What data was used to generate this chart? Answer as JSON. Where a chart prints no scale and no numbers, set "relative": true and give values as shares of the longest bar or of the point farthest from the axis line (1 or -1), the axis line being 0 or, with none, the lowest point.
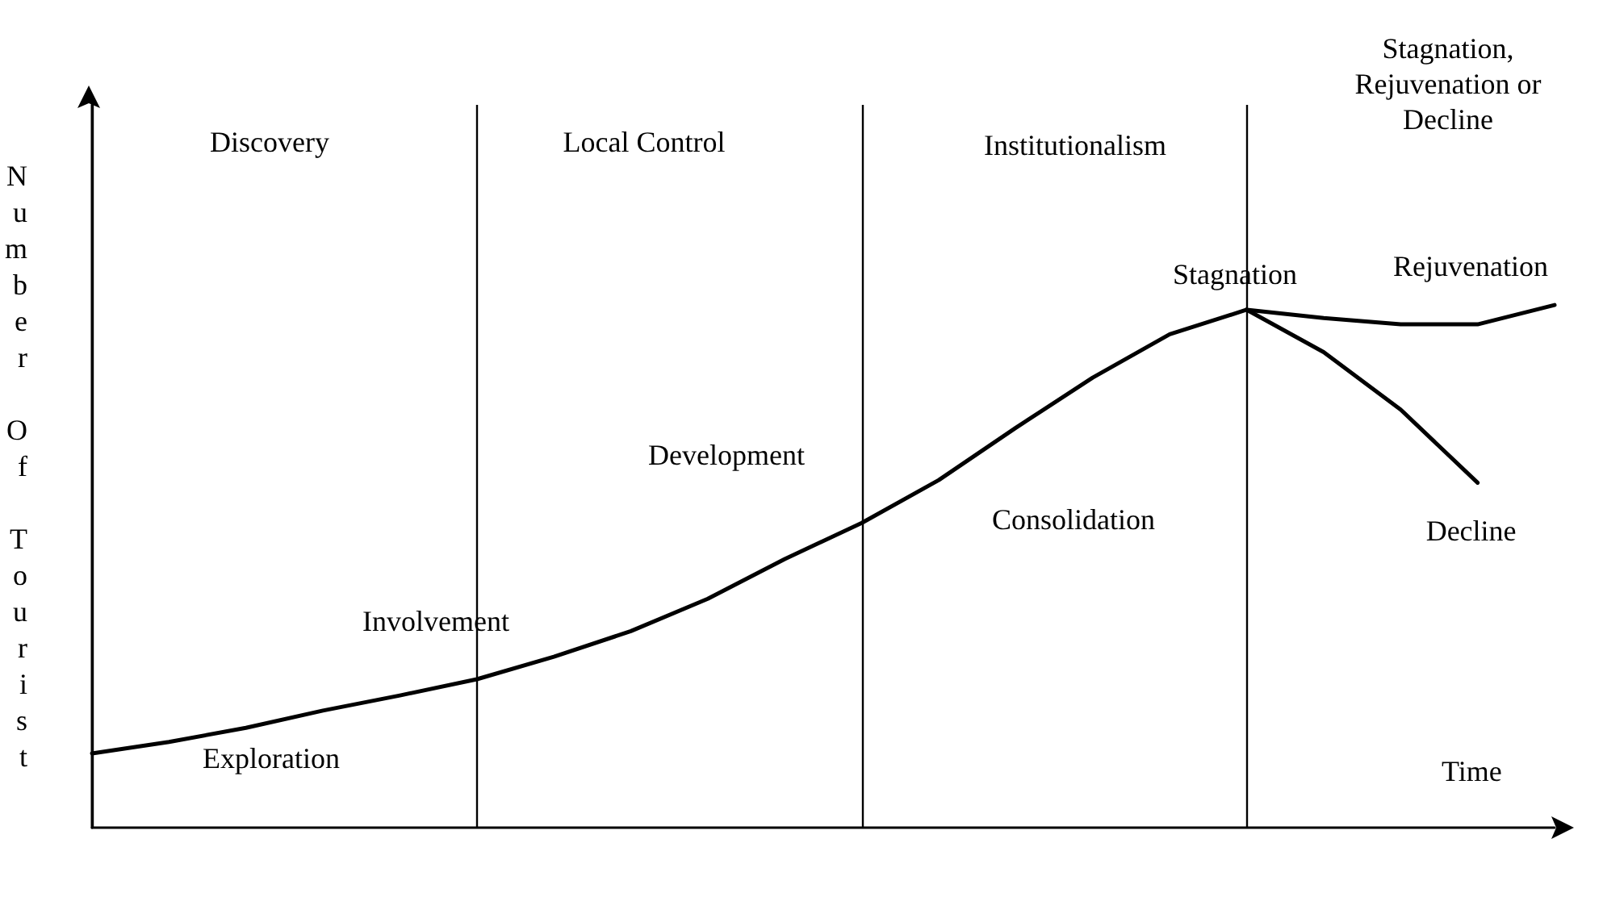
{
  "chart_data": {
    "type": "line",
    "relative": true,
    "xlabel": "Time",
    "ylabel": "Number Of Tourist",
    "grid": "x",
    "legend": false,
    "marker": "none",
    "line_style": "solid",
    "categories": [
      null,
      null,
      null,
      null,
      null,
      null,
      null,
      null,
      null,
      null,
      null,
      null,
      null,
      null,
      null,
      null,
      null,
      null,
      null,
      null
    ],
    "series": [
      {
        "name": "Rejuvenation",
        "color": "#000000",
        "values": [
          0.142,
          0.164,
          0.191,
          0.224,
          0.253,
          0.284,
          0.327,
          0.376,
          0.438,
          0.514,
          0.583,
          0.665,
          0.765,
          0.861,
          0.944,
          0.991,
          0.975,
          0.963,
          0.963,
          1
        ]
      },
      {
        "name": "Decline",
        "color": "#000000",
        "values": [
          null,
          null,
          null,
          null,
          null,
          null,
          null,
          null,
          null,
          null,
          null,
          null,
          null,
          null,
          null,
          0.991,
          0.91,
          0.8,
          0.66,
          null
        ]
      }
    ],
    "annotations": [
      "Discovery",
      "Local Control",
      "Institutionalism",
      "Stagnation, Rejuvenation or Decline",
      "Exploration",
      "Involvement",
      "Development",
      "Consolidation",
      "Stagnation"
    ]
  }
}
